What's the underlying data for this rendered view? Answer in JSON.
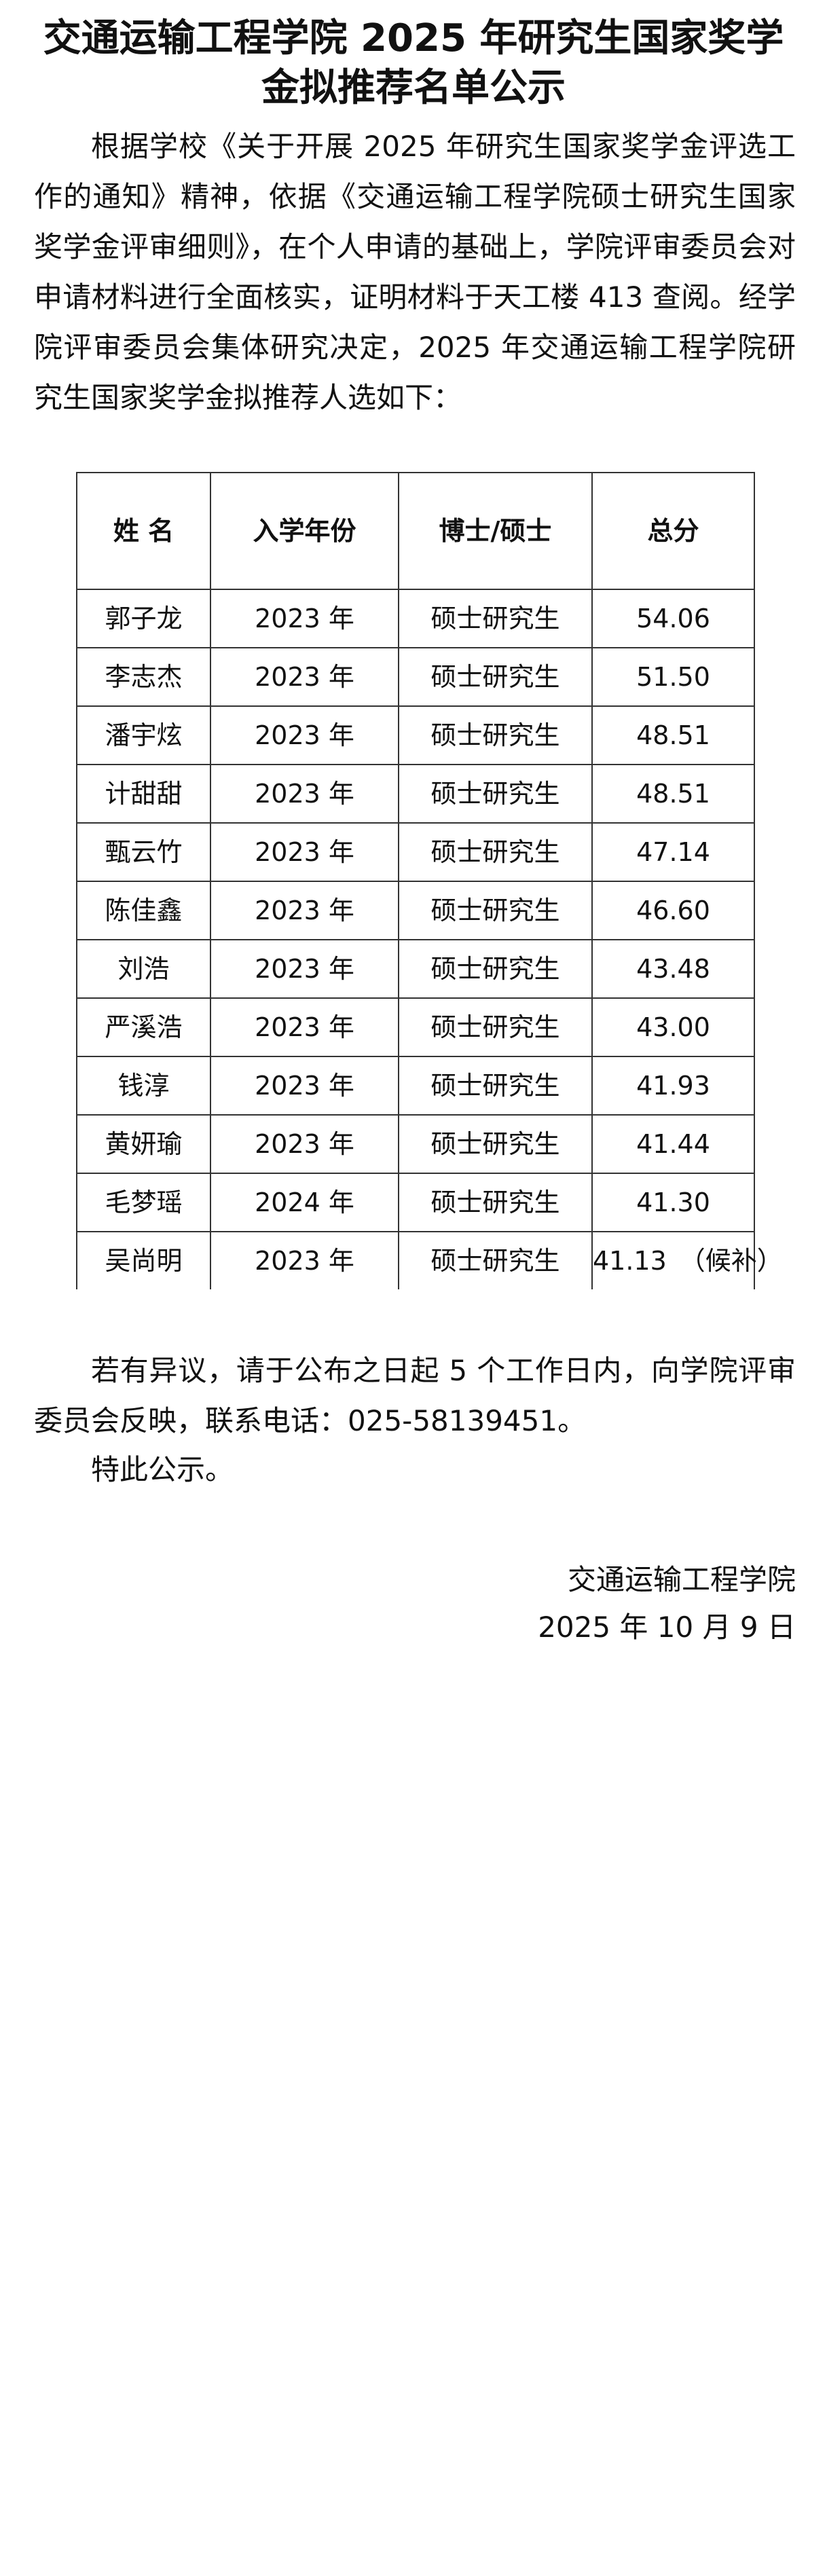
{
  "title": [
    "交通运输工程学院 2025 年研究生国家奖学",
    "金拟推荐名单公示"
  ],
  "intro": "根据学校《关于开展 2025 年研究生国家奖学金评选工作的通知》精神，依据《交通运输工程学院硕士研究生国家奖学金评审细则》，在个人申请的基础上，学院评审委员会对申请材料进行全面核实，证明材料于天工楼 413 查阅。经学院评审委员会集体研究决定，2025 年交通运输工程学院研究生国家奖学金拟推荐人选如下：",
  "table": {
    "headers": [
      "姓 名",
      "入学年份",
      "博士/硕士",
      "总分"
    ],
    "rows": [
      [
        "郭子龙",
        "2023 年",
        "硕士研究生",
        "54.06"
      ],
      [
        "李志杰",
        "2023 年",
        "硕士研究生",
        "51.50"
      ],
      [
        "潘宇炫",
        "2023 年",
        "硕士研究生",
        "48.51"
      ],
      [
        "计甜甜",
        "2023 年",
        "硕士研究生",
        "48.51"
      ],
      [
        "甄云竹",
        "2023 年",
        "硕士研究生",
        "47.14"
      ],
      [
        "陈佳鑫",
        "2023 年",
        "硕士研究生",
        "46.60"
      ],
      [
        "刘浩",
        "2023 年",
        "硕士研究生",
        "43.48"
      ],
      [
        "严溪浩",
        "2023 年",
        "硕士研究生",
        "43.00"
      ],
      [
        "钱淳",
        "2023 年",
        "硕士研究生",
        "41.93"
      ],
      [
        "黄妍瑜",
        "2023 年",
        "硕士研究生",
        "41.44"
      ],
      [
        "毛梦瑶",
        "2024 年",
        "硕士研究生",
        "41.30"
      ],
      [
        "吴尚明",
        "2023 年",
        "硕士研究生",
        "41.13　（候补）"
      ]
    ]
  },
  "objection": "若有异议，请于公布之日起 5 个工作日内，向学院评审委员会反映，联系电话：025-58139451。",
  "closing": "特此公示。",
  "signature": {
    "org": "交通运输工程学院",
    "date": "2025 年 10 月 9 日"
  }
}
